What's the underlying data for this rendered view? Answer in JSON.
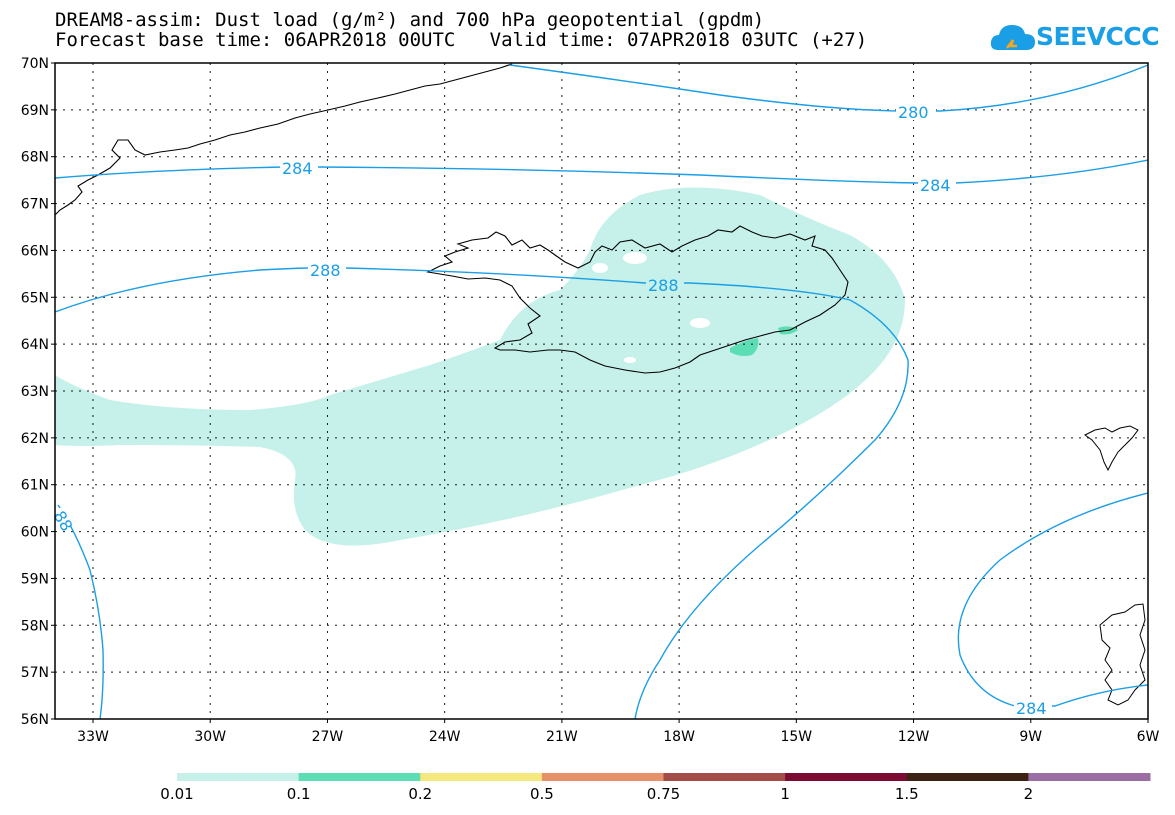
{
  "header": {
    "title_line1": "DREAM8-assim: Dust load (g/m²) and 700 hPa geopotential (gpdm)",
    "title_line2": "Forecast base time: 06APR2018 00UTC   Valid time: 07APR2018 03UTC (+27)"
  },
  "logo": {
    "text": "SEEVCCC",
    "color": "#1a9ee6"
  },
  "map": {
    "lat_labels": [
      "70N",
      "69N",
      "68N",
      "67N",
      "66N",
      "65N",
      "64N",
      "63N",
      "62N",
      "61N",
      "60N",
      "59N",
      "58N",
      "57N",
      "56N"
    ],
    "lon_labels": [
      "33W",
      "30W",
      "27W",
      "24W",
      "21W",
      "18W",
      "15W",
      "12W",
      "9W",
      "6W"
    ],
    "contour_labels": {
      "c280": "280",
      "c284_north": "284",
      "c284_north_east": "284",
      "c288_west": "288",
      "c288_center": "288",
      "c288_edge": "88",
      "c284_south_east": "284"
    },
    "colors": {
      "contour": "#1a9ee6",
      "dust_light": "#c6f1ea",
      "dust_medium": "#5dddb4",
      "coast": "#000000"
    }
  },
  "colorbar": {
    "labels": [
      "0.01",
      "0.1",
      "0.2",
      "0.5",
      "0.75",
      "1",
      "1.5",
      "2"
    ],
    "colors": [
      "#c6f1ea",
      "#5dddb4",
      "#f5e87d",
      "#e8906a",
      "#a44c48",
      "#7d0a30",
      "#3c2314",
      "#9a6ea2"
    ]
  }
}
